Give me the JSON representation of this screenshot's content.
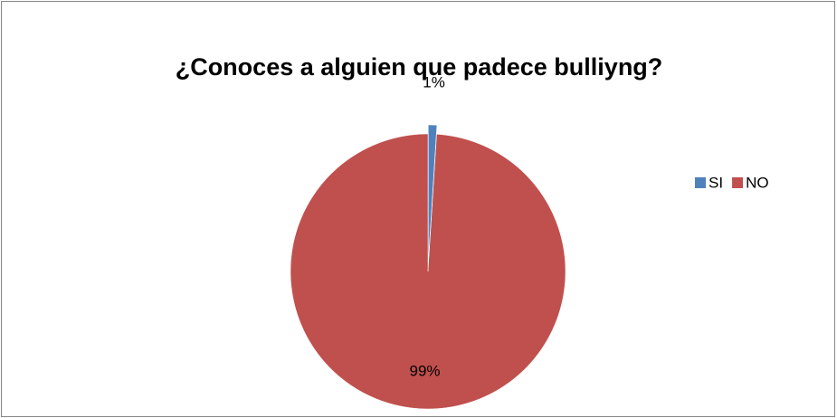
{
  "chart_data": {
    "type": "pie",
    "title": "¿Conoces a alguien que padece bulliyng?",
    "categories": [
      "SI",
      "NO"
    ],
    "values": [
      1,
      99
    ],
    "value_labels": [
      "1%",
      "99%"
    ],
    "colors": [
      "#4f81bd",
      "#c0504d"
    ],
    "legend": "right"
  }
}
